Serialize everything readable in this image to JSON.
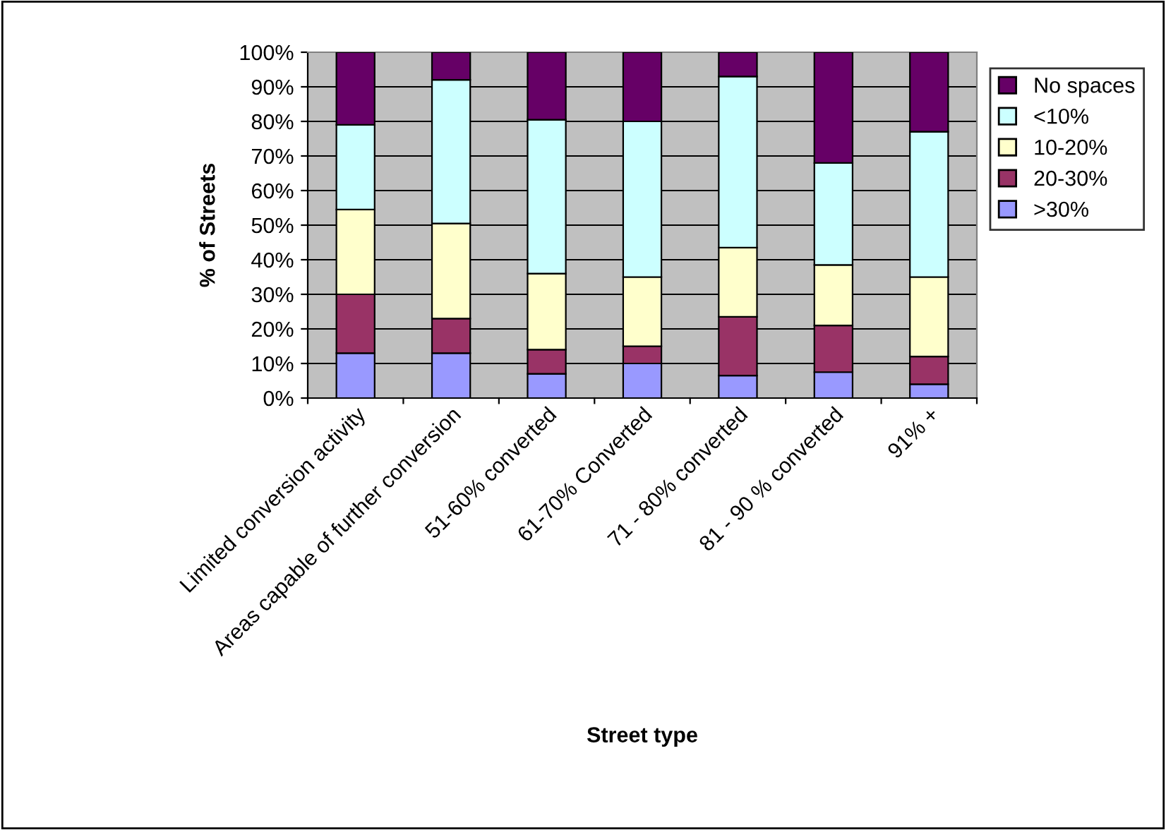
{
  "chart_data": {
    "type": "bar",
    "stacked": true,
    "xlabel": "Street type",
    "ylabel": "% of Streets",
    "categories": [
      "Limited conversion activity",
      "Areas capable of further conversion",
      "51-60% converted",
      "61-70% Converted",
      "71 - 80% converted",
      "81 - 90 % converted",
      "91% +"
    ],
    "series": [
      {
        "name": ">30%",
        "color": "#9999ff",
        "values": [
          13,
          13,
          7,
          10,
          6.5,
          7.5,
          4
        ]
      },
      {
        "name": "20-30%",
        "color": "#993366",
        "values": [
          17,
          10,
          7,
          5,
          17,
          13.5,
          8
        ]
      },
      {
        "name": "10-20%",
        "color": "#ffffcc",
        "values": [
          24.5,
          27.5,
          22,
          20,
          20,
          17.5,
          23
        ]
      },
      {
        "name": "<10%",
        "color": "#ccffff",
        "values": [
          24.5,
          41.5,
          44.5,
          45,
          49.5,
          29.5,
          42
        ]
      },
      {
        "name": "No spaces",
        "color": "#660066",
        "values": [
          21,
          8,
          19.5,
          20,
          7,
          32,
          23
        ]
      }
    ],
    "ylim": [
      0,
      100
    ],
    "yticks": [
      {
        "value": 0,
        "label": "0%"
      },
      {
        "value": 10,
        "label": "10%"
      },
      {
        "value": 20,
        "label": "20%"
      },
      {
        "value": 30,
        "label": "30%"
      },
      {
        "value": 40,
        "label": "40%"
      },
      {
        "value": 50,
        "label": "50%"
      },
      {
        "value": 60,
        "label": "60%"
      },
      {
        "value": 70,
        "label": "70%"
      },
      {
        "value": 80,
        "label": "80%"
      },
      {
        "value": 90,
        "label": "90%"
      },
      {
        "value": 100,
        "label": "100%"
      }
    ],
    "grid": "y",
    "legend": "right"
  }
}
